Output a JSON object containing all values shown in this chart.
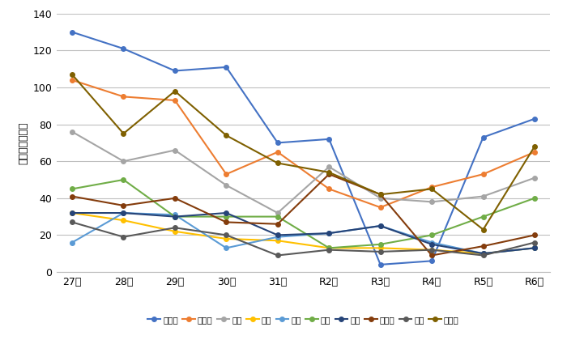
{
  "x_labels": [
    "27年",
    "28年",
    "29年",
    "30年",
    "31年",
    "R2年",
    "R3年",
    "R4年",
    "R5年",
    "R6年"
  ],
  "series_order": [
    "矢野口",
    "東長汼",
    "大丸",
    "百村",
    "坂浜",
    "平尾",
    "押立",
    "向陽台",
    "長峰",
    "若葉台"
  ],
  "series": {
    "矢野口": [
      130,
      121,
      109,
      111,
      70,
      72,
      4,
      6,
      73,
      83
    ],
    "東長汼": [
      104,
      95,
      93,
      53,
      65,
      45,
      35,
      46,
      53,
      65
    ],
    "大丸": [
      76,
      60,
      66,
      47,
      32,
      57,
      40,
      38,
      41,
      51
    ],
    "百村": [
      32,
      28,
      22,
      18,
      17,
      13,
      13,
      12,
      10,
      13
    ],
    "坂浜": [
      16,
      32,
      31,
      13,
      19,
      21,
      25,
      16,
      10,
      13
    ],
    "平尾": [
      45,
      50,
      30,
      30,
      30,
      13,
      15,
      20,
      30,
      40
    ],
    "押立": [
      32,
      32,
      30,
      32,
      20,
      21,
      25,
      15,
      10,
      13
    ],
    "向陽台": [
      41,
      36,
      40,
      27,
      26,
      53,
      42,
      9,
      14,
      20
    ],
    "長峰": [
      27,
      19,
      24,
      20,
      9,
      12,
      11,
      12,
      9,
      16
    ],
    "若葉台": [
      107,
      75,
      98,
      74,
      59,
      54,
      42,
      45,
      23,
      68
    ]
  },
  "colors": {
    "矢野口": "#4472C4",
    "東長汼": "#ED7D31",
    "大丸": "#A5A5A5",
    "百村": "#FFC000",
    "坂浜": "#5B9BD5",
    "平尾": "#70AD47",
    "押立": "#264478",
    "向陽台": "#843C0C",
    "長峰": "#595959",
    "若葉台": "#7F6000"
  },
  "ylabel": "認知件数（件）",
  "ylim": [
    0,
    140
  ],
  "yticks": [
    0,
    20,
    40,
    60,
    80,
    100,
    120,
    140
  ],
  "background_color": "#ffffff",
  "grid_color": "#BFBFBF"
}
